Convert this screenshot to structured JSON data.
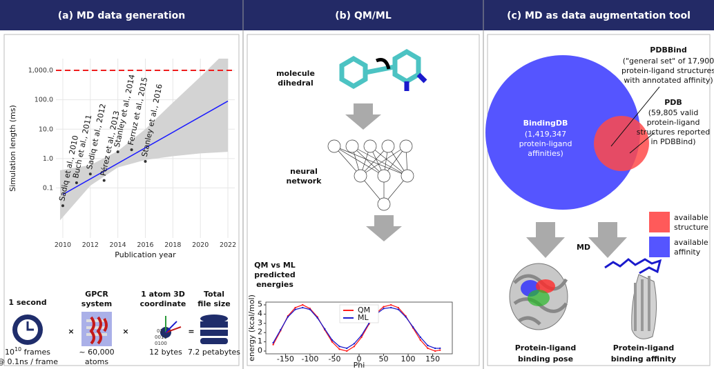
{
  "headers": [
    "(a) MD data generation",
    "(b) QM/ML",
    "(c) MD as data augmentation tool"
  ],
  "chart_data": [
    {
      "type": "scatter",
      "log_y": true,
      "grid": true,
      "xlabel": "Publication year",
      "ylabel": "Simulation length (ms)",
      "xlim": [
        2009.5,
        2022.5
      ],
      "xticks": [
        2010,
        2012,
        2014,
        2016,
        2018,
        2020,
        2022
      ],
      "ylim": [
        0.002,
        2500
      ],
      "yticks": [
        0.1,
        {
          "value": 1,
          "label": "1.0"
        },
        {
          "value": 10,
          "label": "10.0"
        },
        {
          "value": 100,
          "label": "100.0"
        },
        {
          "value": 1000,
          "label": "1,000.0"
        }
      ],
      "x": [
        2010,
        2011,
        2012,
        2013,
        2014,
        2015,
        2016
      ],
      "values": [
        0.025,
        0.15,
        0.3,
        0.18,
        1.7,
        2.0,
        0.8
      ],
      "labels": [
        "Sadiq et al., 2010",
        "Buch et al., 2011",
        "Sadiq et al., 2012",
        "Pérez et al., 2013",
        "Stanley et al., 2014",
        "Ferruz et al., 2015",
        "Stanley et al., 2016"
      ],
      "color": "#333333",
      "trend": {
        "x": [
          2010,
          2022
        ],
        "values": [
          0.06,
          90
        ],
        "color": "#1a1aff"
      },
      "band": {
        "x": [
          2009.8,
          2012,
          2014,
          2016,
          2018,
          2020,
          2022
        ],
        "lower": [
          0.008,
          0.12,
          0.5,
          0.9,
          1.2,
          1.5,
          1.7
        ],
        "upper": [
          0.4,
          0.6,
          1.8,
          10,
          80,
          600,
          5000
        ],
        "color": "#d3d3d3"
      },
      "threshold": 1000,
      "threshold_color": "#ee1c1c"
    },
    {
      "type": "line",
      "xlabel": "Phi",
      "ylabel": "energy (kcal/mol)",
      "legend": "upper center",
      "xlim": [
        -190,
        190
      ],
      "xticks": [
        -150,
        -100,
        -50,
        0,
        50,
        100,
        150
      ],
      "ylim": [
        -0.3,
        5.3
      ],
      "yticks": [
        0,
        1,
        2,
        3,
        4,
        5
      ],
      "x": [
        -175,
        -160,
        -145,
        -130,
        -115,
        -100,
        -85,
        -70,
        -55,
        -40,
        -25,
        -10,
        5,
        20,
        35,
        50,
        65,
        80,
        95,
        110,
        125,
        140,
        155,
        165
      ],
      "series": [
        {
          "name": "QM",
          "color": "#ff1a1a",
          "values": [
            0.7,
            2.2,
            3.8,
            4.7,
            5.0,
            4.6,
            3.7,
            2.3,
            1.0,
            0.2,
            0.0,
            0.5,
            1.5,
            2.9,
            4.1,
            4.8,
            5.0,
            4.7,
            3.8,
            2.5,
            1.2,
            0.3,
            0.0,
            0.1
          ]
        },
        {
          "name": "ML",
          "color": "#1a1acc",
          "values": [
            0.9,
            2.3,
            3.7,
            4.5,
            4.7,
            4.5,
            3.6,
            2.4,
            1.2,
            0.5,
            0.3,
            0.8,
            1.7,
            3.0,
            4.0,
            4.6,
            4.7,
            4.5,
            3.7,
            2.6,
            1.5,
            0.6,
            0.3,
            0.3
          ]
        }
      ]
    }
  ],
  "panel_a": {
    "steps": [
      {
        "title": [
          "1 second"
        ],
        "caption_base": "10",
        "caption_exp": "10",
        "caption_rest": " frames",
        "caption_line2": "@ 0.1ns / frame"
      },
      {
        "title": [
          "GPCR",
          "system"
        ],
        "caption": [
          "~ 60,000",
          "atoms"
        ]
      },
      {
        "title": [
          "1 atom 3D",
          "coordinate"
        ],
        "caption": [
          "12 bytes"
        ]
      },
      {
        "title": [
          "Total",
          "file size"
        ],
        "caption": [
          "7.2 petabytes"
        ]
      }
    ],
    "operators": [
      "×",
      "×",
      "="
    ]
  },
  "panel_b": {
    "molecule": [
      "molecule",
      "dihedral"
    ],
    "network": [
      "neural",
      "network"
    ],
    "energies": [
      "QM vs ML",
      "predicted",
      "energies"
    ]
  },
  "panel_c": {
    "bindingdb": {
      "name": "BindingDB",
      "lines": [
        "(1,419,347",
        "protein-ligand",
        "affinities)"
      ]
    },
    "pdbbind": {
      "name": "PDBBind",
      "lines": [
        "(\"general set\" of 17,900",
        "protein-ligand structures",
        "with annotated affinity)"
      ]
    },
    "pdb": {
      "name": "PDB",
      "lines": [
        "(59,805  valid",
        "protein-ligand",
        "structures reported",
        "in PDBBind)"
      ]
    },
    "md": "MD",
    "legend": [
      {
        "lines": [
          "available",
          "structure"
        ],
        "color": "#ff5a5a"
      },
      {
        "lines": [
          "available",
          "affinity"
        ],
        "color": "#5555ff"
      }
    ],
    "captions": [
      [
        "Protein-ligand",
        "binding pose"
      ],
      [
        "Protein-ligand",
        "binding affinity"
      ]
    ]
  }
}
